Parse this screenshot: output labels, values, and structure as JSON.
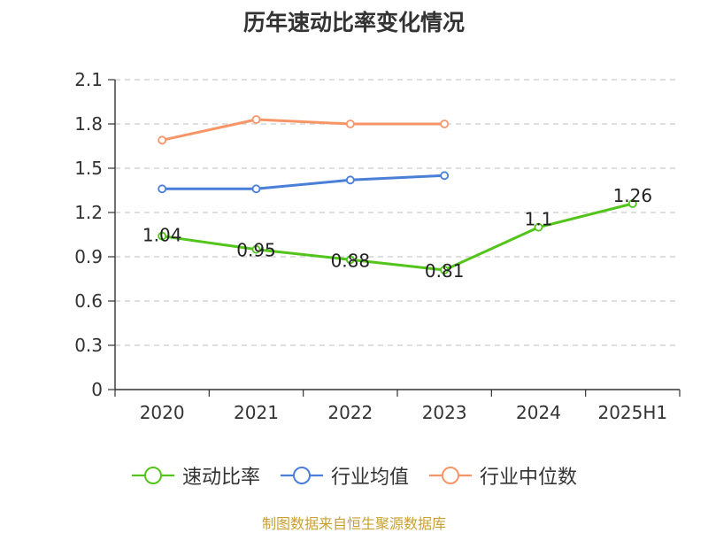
{
  "chart_data": {
    "type": "line",
    "title": "历年速动比率变化情况",
    "categories": [
      "2020",
      "2021",
      "2022",
      "2023",
      "2024",
      "2025H1"
    ],
    "ylim": [
      0,
      2.1
    ],
    "yticks": [
      "0",
      "0.3",
      "0.6",
      "0.9",
      "1.2",
      "1.5",
      "1.8",
      "2.1"
    ],
    "grid": true,
    "legend_position": "bottom",
    "series": [
      {
        "name": "速动比率",
        "color": "#52c41a",
        "values": [
          1.04,
          0.95,
          0.88,
          0.81,
          1.1,
          1.26
        ],
        "data_labels": [
          "1.04",
          "0.95",
          "0.88",
          "0.81",
          "1.1",
          "1.26"
        ]
      },
      {
        "name": "行业均值",
        "color": "#4a7fd9",
        "values": [
          1.36,
          1.36,
          1.42,
          1.45,
          null,
          null
        ]
      },
      {
        "name": "行业中位数",
        "color": "#f79566",
        "values": [
          1.69,
          1.83,
          1.8,
          1.8,
          null,
          null
        ]
      }
    ]
  },
  "source": {
    "text": "制图数据来自恒生聚源数据库",
    "color": "#c8a032"
  }
}
